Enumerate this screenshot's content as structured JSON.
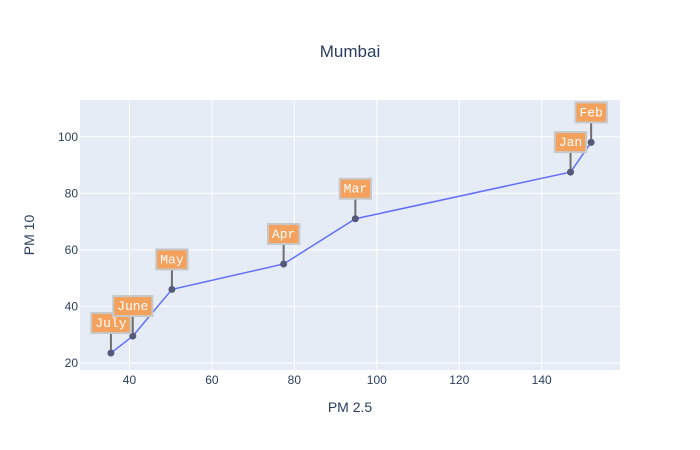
{
  "chart_data": {
    "type": "line",
    "title": "Mumbai",
    "xlabel": "PM 2.5",
    "ylabel": "PM 10",
    "xlim": [
      28,
      159
    ],
    "ylim": [
      17.5,
      113
    ],
    "x_ticks": [
      40,
      60,
      80,
      100,
      120,
      140
    ],
    "y_ticks": [
      20,
      40,
      60,
      80,
      100
    ],
    "grid": true,
    "colors": {
      "plot_bg": "#e5ecf6",
      "grid": "#ffffff",
      "line": "#636efa",
      "marker": "#545a78",
      "annotation_bg": "#f4a15d",
      "annotation_border": "#c8c8c8",
      "annotation_arrow": "#6e6e6e",
      "text": "#2a3f5f"
    },
    "series": [
      {
        "points": [
          {
            "label": "July",
            "x": 35.5,
            "y": 23.5
          },
          {
            "label": "June",
            "x": 40.8,
            "y": 29.5
          },
          {
            "label": "May",
            "x": 50.3,
            "y": 46.0
          },
          {
            "label": "Apr",
            "x": 77.4,
            "y": 55.0
          },
          {
            "label": "Mar",
            "x": 94.8,
            "y": 71.0
          },
          {
            "label": "Jan",
            "x": 147.0,
            "y": 87.5
          },
          {
            "label": "Feb",
            "x": 152.0,
            "y": 98.0
          }
        ]
      }
    ]
  }
}
